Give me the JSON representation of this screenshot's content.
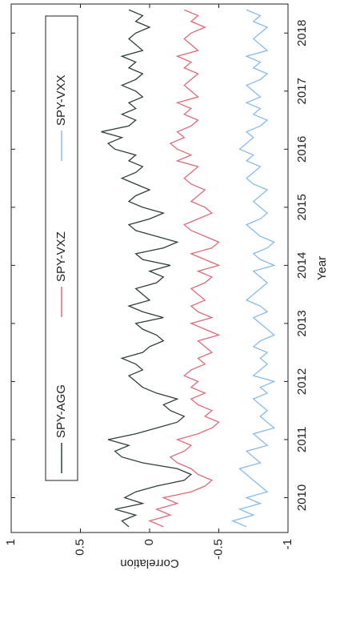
{
  "chart_data": {
    "type": "line",
    "xlabel": "Year",
    "ylabel": "Correlation",
    "x": [
      2009.5,
      2009.6,
      2009.7,
      2009.8,
      2009.9,
      2010.0,
      2010.1,
      2010.2,
      2010.3,
      2010.4,
      2010.5,
      2010.6,
      2010.7,
      2010.8,
      2010.9,
      2011.0,
      2011.1,
      2011.2,
      2011.3,
      2011.4,
      2011.5,
      2011.6,
      2011.7,
      2011.8,
      2011.9,
      2012.0,
      2012.1,
      2012.2,
      2012.3,
      2012.4,
      2012.5,
      2012.6,
      2012.7,
      2012.8,
      2012.9,
      2013.0,
      2013.1,
      2013.2,
      2013.3,
      2013.4,
      2013.5,
      2013.6,
      2013.7,
      2013.8,
      2013.9,
      2014.0,
      2014.1,
      2014.2,
      2014.3,
      2014.4,
      2014.5,
      2014.6,
      2014.7,
      2014.8,
      2014.9,
      2015.0,
      2015.1,
      2015.2,
      2015.3,
      2015.4,
      2015.5,
      2015.6,
      2015.7,
      2015.8,
      2015.9,
      2016.0,
      2016.1,
      2016.2,
      2016.3,
      2016.4,
      2016.5,
      2016.6,
      2016.7,
      2016.8,
      2016.9,
      2017.0,
      2017.1,
      2017.2,
      2017.3,
      2017.4,
      2017.5,
      2017.6,
      2017.7,
      2017.8,
      2017.9,
      2018.0,
      2018.1,
      2018.2,
      2018.3,
      2018.4
    ],
    "series": [
      {
        "name": "SPY-AGG",
        "color": "#2f3f3a",
        "values": [
          0.15,
          0.2,
          0.1,
          0.25,
          0.05,
          0.18,
          0.1,
          -0.05,
          -0.25,
          -0.3,
          -0.2,
          0.05,
          0.2,
          0.25,
          0.15,
          0.3,
          0.1,
          -0.05,
          -0.2,
          -0.25,
          -0.15,
          -0.1,
          -0.2,
          -0.05,
          0.05,
          0.1,
          0.15,
          0.05,
          0.1,
          0.2,
          0.05,
          0.0,
          -0.1,
          -0.05,
          0.05,
          0.1,
          -0.1,
          0.05,
          0.15,
          0.0,
          0.05,
          0.1,
          -0.05,
          -0.1,
          0.0,
          -0.15,
          0.05,
          0.1,
          -0.1,
          -0.2,
          -0.05,
          0.1,
          0.15,
          0.0,
          -0.1,
          0.05,
          0.15,
          0.1,
          0.0,
          0.1,
          0.2,
          0.1,
          0.05,
          0.15,
          0.1,
          0.25,
          0.3,
          0.2,
          0.35,
          0.15,
          0.1,
          0.2,
          0.1,
          0.15,
          0.05,
          0.1,
          0.2,
          0.1,
          0.05,
          0.15,
          0.1,
          0.2,
          0.05,
          0.1,
          0.15,
          0.1,
          0.0,
          0.1,
          0.05,
          0.15
        ]
      },
      {
        "name": "SPY-VXZ",
        "color": "#e06a78",
        "values": [
          -0.1,
          0.0,
          -0.15,
          -0.05,
          -0.2,
          -0.1,
          -0.3,
          -0.4,
          -0.45,
          -0.35,
          -0.3,
          -0.2,
          -0.15,
          -0.25,
          -0.3,
          -0.2,
          -0.35,
          -0.45,
          -0.5,
          -0.4,
          -0.45,
          -0.35,
          -0.3,
          -0.4,
          -0.3,
          -0.35,
          -0.25,
          -0.3,
          -0.4,
          -0.35,
          -0.45,
          -0.4,
          -0.35,
          -0.5,
          -0.4,
          -0.3,
          -0.45,
          -0.35,
          -0.3,
          -0.4,
          -0.35,
          -0.3,
          -0.4,
          -0.45,
          -0.35,
          -0.5,
          -0.4,
          -0.3,
          -0.45,
          -0.5,
          -0.4,
          -0.3,
          -0.25,
          -0.35,
          -0.45,
          -0.4,
          -0.3,
          -0.35,
          -0.4,
          -0.3,
          -0.25,
          -0.3,
          -0.35,
          -0.2,
          -0.3,
          -0.2,
          -0.15,
          -0.25,
          -0.2,
          -0.3,
          -0.35,
          -0.25,
          -0.3,
          -0.2,
          -0.35,
          -0.3,
          -0.25,
          -0.3,
          -0.35,
          -0.25,
          -0.3,
          -0.2,
          -0.35,
          -0.3,
          -0.25,
          -0.3,
          -0.4,
          -0.3,
          -0.35,
          -0.25
        ]
      },
      {
        "name": "SPY-VXX",
        "color": "#88bbee",
        "values": [
          -0.7,
          -0.6,
          -0.75,
          -0.65,
          -0.8,
          -0.7,
          -0.85,
          -0.8,
          -0.75,
          -0.7,
          -0.65,
          -0.8,
          -0.75,
          -0.7,
          -0.85,
          -0.8,
          -0.75,
          -0.9,
          -0.85,
          -0.8,
          -0.85,
          -0.8,
          -0.75,
          -0.85,
          -0.8,
          -0.9,
          -0.75,
          -0.8,
          -0.85,
          -0.8,
          -0.85,
          -0.75,
          -0.8,
          -0.9,
          -0.85,
          -0.8,
          -0.75,
          -0.85,
          -0.8,
          -0.7,
          -0.75,
          -0.8,
          -0.85,
          -0.8,
          -0.75,
          -0.9,
          -0.8,
          -0.75,
          -0.85,
          -0.9,
          -0.8,
          -0.75,
          -0.7,
          -0.8,
          -0.85,
          -0.8,
          -0.75,
          -0.8,
          -0.85,
          -0.75,
          -0.7,
          -0.75,
          -0.8,
          -0.7,
          -0.75,
          -0.65,
          -0.7,
          -0.75,
          -0.7,
          -0.8,
          -0.85,
          -0.75,
          -0.8,
          -0.7,
          -0.8,
          -0.75,
          -0.7,
          -0.8,
          -0.85,
          -0.75,
          -0.8,
          -0.7,
          -0.85,
          -0.8,
          -0.75,
          -0.8,
          -0.85,
          -0.75,
          -0.8,
          -0.7
        ]
      }
    ],
    "xlim": [
      2009.4,
      2018.5
    ],
    "xticks": [
      2010,
      2011,
      2012,
      2013,
      2014,
      2015,
      2016,
      2017,
      2018
    ],
    "ylim": [
      -1,
      1
    ],
    "yticks": [
      -1,
      -0.5,
      0,
      0.5,
      1
    ]
  }
}
